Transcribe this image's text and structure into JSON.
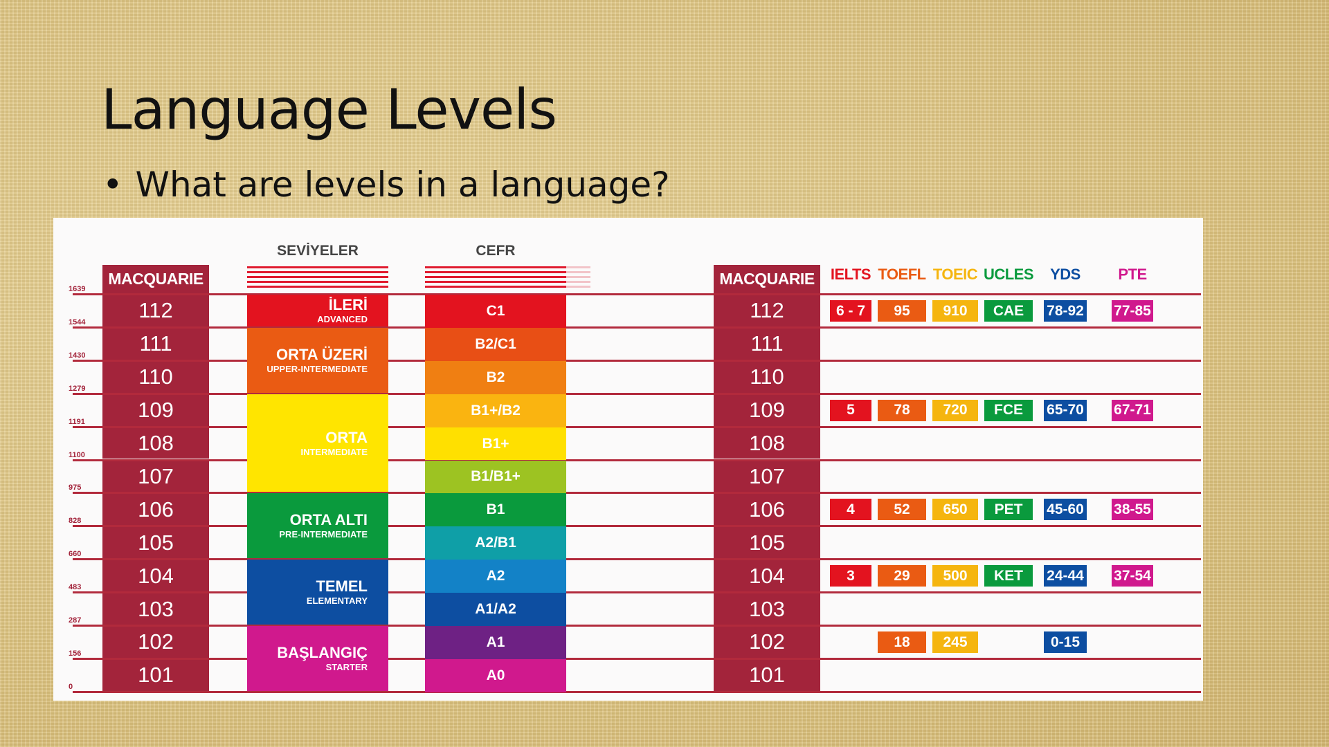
{
  "slide": {
    "title": "Language Levels",
    "bullet_symbol": "•",
    "bullet_text": "What are levels in a language?"
  },
  "table": {
    "macquarie_header": "MACQUARIE",
    "seviyeler_header": "SEVİYELER",
    "cefr_header": "CEFR",
    "macquarie_levels": [
      "112",
      "111",
      "110",
      "109",
      "108",
      "107",
      "106",
      "105",
      "104",
      "103",
      "102",
      "101"
    ],
    "scale_values": [
      "1639",
      "1544",
      "1430",
      "1279",
      "1191",
      "1100",
      "975",
      "828",
      "660",
      "483",
      "287",
      "156",
      "0"
    ],
    "levels": [
      {
        "name": "İLERİ",
        "sub": "ADVANCED",
        "color": "#e3131f"
      },
      {
        "name": "ORTA ÜZERİ",
        "sub": "UPPER-INTERMEDIATE",
        "color": "#ea5b13"
      },
      {
        "name": "ORTA",
        "sub": "INTERMEDIATE",
        "color": "#ffe500"
      },
      {
        "name": "ORTA ALTI",
        "sub": "PRE-INTERMEDIATE",
        "color": "#0a9a3d"
      },
      {
        "name": "TEMEL",
        "sub": "ELEMENTARY",
        "color": "#0d4ea1"
      },
      {
        "name": "BAŞLANGIÇ",
        "sub": "STARTER",
        "color": "#d0198d"
      }
    ],
    "cefr": [
      {
        "label": "C1",
        "color": "#e3131f"
      },
      {
        "label": "B2/C1",
        "color": "#e84f15"
      },
      {
        "label": "B2",
        "color": "#f07f12"
      },
      {
        "label": "B1+/B2",
        "color": "#fab410"
      },
      {
        "label": "B1+",
        "color": "#ffe000"
      },
      {
        "label": "B1/B1+",
        "color": "#9dc322"
      },
      {
        "label": "B1",
        "color": "#0a9a3d"
      },
      {
        "label": "A2/B1",
        "color": "#0f9fa7"
      },
      {
        "label": "A2",
        "color": "#1382c7"
      },
      {
        "label": "A1/A2",
        "color": "#0d4ea1"
      },
      {
        "label": "A1",
        "color": "#6e2184"
      },
      {
        "label": "A0",
        "color": "#d0198d"
      }
    ],
    "exams": [
      {
        "name": "IELTS",
        "color": "#e3131f"
      },
      {
        "name": "TOEFL",
        "color": "#ea5b13"
      },
      {
        "name": "TOEIC",
        "color": "#f5b50f"
      },
      {
        "name": "UCLES",
        "color": "#0a9a3d"
      },
      {
        "name": "YDS",
        "color": "#0d4ea1"
      },
      {
        "name": "PTE",
        "color": "#d0198d"
      }
    ],
    "scores": [
      {
        "level": "112",
        "values": [
          "6 - 7",
          "95",
          "910",
          "CAE",
          "78-92",
          "77-85"
        ]
      },
      {
        "level": "109",
        "values": [
          "5",
          "78",
          "720",
          "FCE",
          "65-70",
          "67-71"
        ]
      },
      {
        "level": "106",
        "values": [
          "4",
          "52",
          "650",
          "PET",
          "45-60",
          "38-55"
        ]
      },
      {
        "level": "104",
        "values": [
          "3",
          "29",
          "500",
          "KET",
          "24-44",
          "37-54"
        ]
      },
      {
        "level": "102",
        "values": [
          "",
          "18",
          "245",
          "",
          "0-15",
          ""
        ]
      }
    ]
  }
}
